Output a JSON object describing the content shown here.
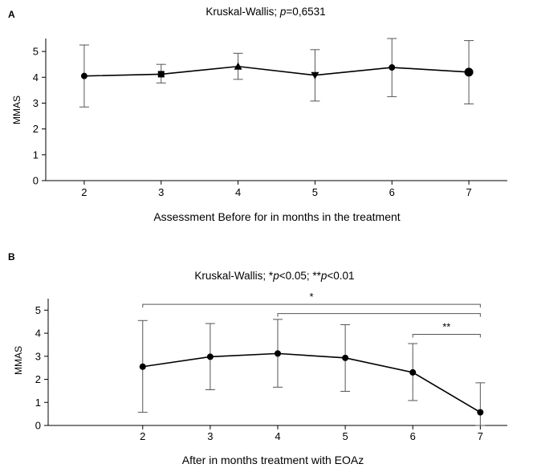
{
  "chart_data": [
    {
      "panel": "A",
      "type": "line",
      "title": "Kruskal-Wallis; p=0,6531",
      "title_prefix": "Kruskal-Wallis; ",
      "title_p": "p",
      "title_suffix": "=0,6531",
      "xlabel": "Assessment Before for  in months in the treatment",
      "ylabel": "MMAS",
      "x": [
        2,
        3,
        4,
        5,
        6,
        7
      ],
      "x_tick_labels": [
        "2",
        "3",
        "4",
        "5",
        "6",
        "7"
      ],
      "y_ticks": [
        0,
        1,
        2,
        3,
        4,
        5
      ],
      "y_tick_labels": [
        "0",
        "1",
        "2",
        "3",
        "4",
        "5"
      ],
      "ylim": [
        0,
        5.5
      ],
      "xlim": [
        1.5,
        7.5
      ],
      "series": [
        {
          "values": [
            4.05,
            4.12,
            4.42,
            4.08,
            4.38,
            4.2
          ],
          "err_low": [
            2.85,
            3.78,
            3.92,
            3.08,
            3.25,
            2.97
          ],
          "err_high": [
            5.25,
            4.5,
            4.93,
            5.07,
            5.5,
            5.42
          ],
          "markers": [
            "circle",
            "square",
            "triangle-up",
            "triangle-down",
            "circle",
            "circle-large"
          ]
        }
      ],
      "brackets": [],
      "grid": false
    },
    {
      "panel": "B",
      "type": "line",
      "title": "Kruskal-Wallis; *p<0.05; **p<0.01",
      "title_prefix": "Kruskal-Wallis; *",
      "title_p1": "p",
      "title_mid": "<0.05; **",
      "title_p2": "p",
      "title_suffix": "<0.01",
      "xlabel": "After in months treatment with EOAz",
      "ylabel": "MMAS",
      "x": [
        2,
        3,
        4,
        5,
        6,
        7
      ],
      "x_tick_labels": [
        "2",
        "3",
        "4",
        "5",
        "6",
        "7"
      ],
      "y_ticks": [
        0,
        1,
        2,
        3,
        4,
        5
      ],
      "y_tick_labels": [
        "0",
        "1",
        "2",
        "3",
        "4",
        "5"
      ],
      "ylim": [
        0,
        5.5
      ],
      "xlim": [
        0.6,
        7.4
      ],
      "series": [
        {
          "values": [
            2.55,
            2.98,
            3.12,
            2.93,
            2.3,
            0.57
          ],
          "err_low": [
            0.57,
            1.55,
            1.66,
            1.48,
            1.08,
            0.0
          ],
          "err_high": [
            4.55,
            4.42,
            4.6,
            4.37,
            3.55,
            1.85
          ],
          "markers": [
            "circle",
            "circle",
            "circle",
            "circle",
            "circle",
            "circle"
          ]
        }
      ],
      "brackets": [
        {
          "x1": 2,
          "x2": 7,
          "y": 5.25,
          "label": "*"
        },
        {
          "x1": 4,
          "x2": 7,
          "y": 4.85,
          "label": ""
        },
        {
          "x1": 6,
          "x2": 7,
          "y": 3.95,
          "label": "**"
        }
      ],
      "grid": false
    }
  ]
}
